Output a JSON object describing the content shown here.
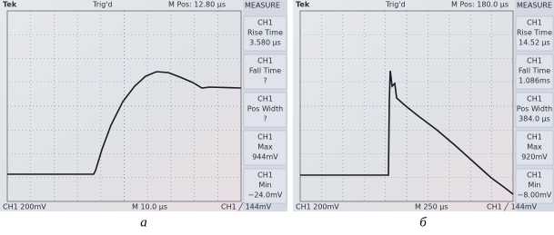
{
  "panels": [
    {
      "header": {
        "brand": "Tek",
        "trigger": "Trig'd",
        "position": "M Pos: 12.80 µs",
        "menu_title": "MEASURE"
      },
      "menu": [
        {
          "lines": [
            "CH1",
            "Rise Time",
            "3.580 µs"
          ]
        },
        {
          "lines": [
            "CH1",
            "Fall Time",
            "?"
          ]
        },
        {
          "lines": [
            "CH1",
            "Pos Width",
            "?"
          ]
        },
        {
          "lines": [
            "CH1",
            "Max",
            "944mV"
          ]
        },
        {
          "lines": [
            "CH1",
            "Min",
            "−24.0mV"
          ]
        }
      ],
      "footer": {
        "channel": "CH1  200mV",
        "timebase": "M 10.0 µs",
        "trigger_level": "CH1 ╱ 144mV"
      },
      "caption": "а"
    },
    {
      "header": {
        "brand": "Tek",
        "trigger": "Trig'd",
        "position": "M Pos: 180.0 µs",
        "menu_title": "MEASURE"
      },
      "menu": [
        {
          "lines": [
            "CH1",
            "Rise Time",
            "14.52 µs"
          ]
        },
        {
          "lines": [
            "CH1",
            "Fall Time",
            "1.086ms"
          ]
        },
        {
          "lines": [
            "CH1",
            "Pos Width",
            "384.0 µs"
          ]
        },
        {
          "lines": [
            "CH1",
            "Max",
            "920mV"
          ]
        },
        {
          "lines": [
            "CH1",
            "Min",
            "−8.00mV"
          ]
        }
      ],
      "footer": {
        "channel": "CH1  200mV",
        "timebase": "M 250 µs",
        "trigger_level": "CH1 ╱ 144mV"
      },
      "caption": "б"
    }
  ]
}
